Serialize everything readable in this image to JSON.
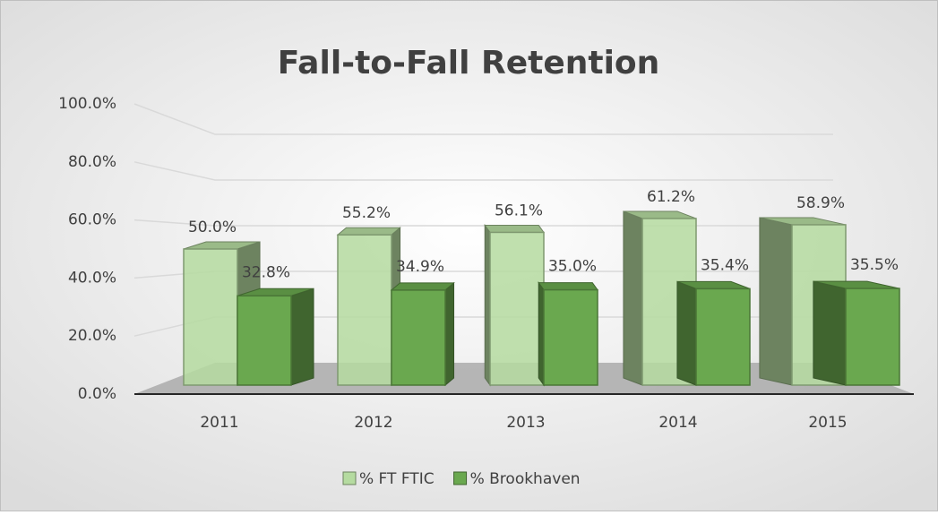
{
  "chart_data": {
    "type": "bar3d",
    "title": "Fall-to-Fall Retention",
    "categories": [
      "2011",
      "2012",
      "2013",
      "2014",
      "2015"
    ],
    "series": [
      {
        "name": "% FT FTIC",
        "color": "#b5dba0",
        "values": [
          50.0,
          55.2,
          56.1,
          61.2,
          58.9
        ],
        "value_labels": [
          "50.0%",
          "55.2%",
          "56.1%",
          "61.2%",
          "58.9%"
        ]
      },
      {
        "name": "% Brookhaven",
        "color": "#6aa84f",
        "values": [
          32.8,
          34.9,
          35.0,
          35.4,
          35.5
        ],
        "value_labels": [
          "32.8%",
          "34.9%",
          "35.0%",
          "35.4%",
          "35.5%"
        ]
      }
    ],
    "ylim": [
      0,
      100
    ],
    "yticks": [
      {
        "value": 0,
        "label": "0.0%"
      },
      {
        "value": 20,
        "label": "20.0%"
      },
      {
        "value": 40,
        "label": "40.0%"
      },
      {
        "value": 60,
        "label": "60.0%"
      },
      {
        "value": 80,
        "label": "80.0%"
      },
      {
        "value": 100,
        "label": "100.0%"
      }
    ],
    "grid": true,
    "legend": "bottom"
  }
}
